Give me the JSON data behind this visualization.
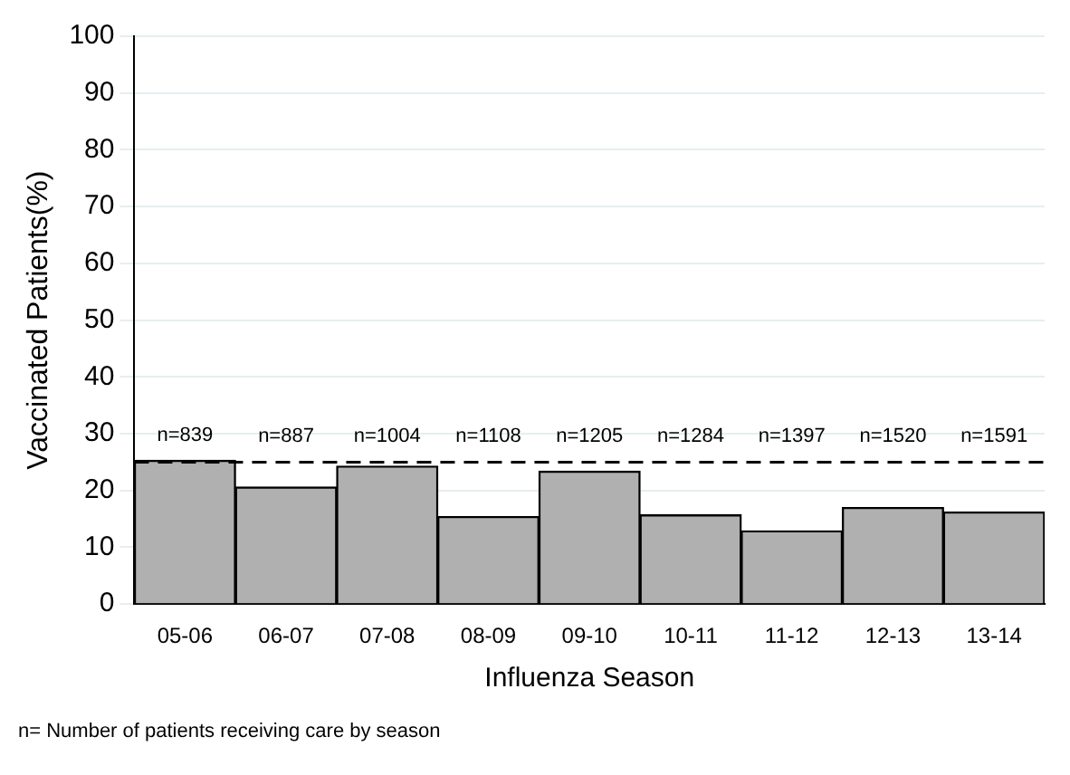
{
  "chart_data": {
    "type": "bar",
    "xlabel": "Influenza Season",
    "ylabel": "Vaccinated Patients(%)",
    "categories": [
      "05-06",
      "06-07",
      "07-08",
      "08-09",
      "09-10",
      "10-11",
      "11-12",
      "12-13",
      "13-14"
    ],
    "values": [
      25.3,
      20.6,
      24.3,
      15.4,
      23.4,
      15.7,
      12.9,
      17.0,
      16.2
    ],
    "color": "#b0b0b0",
    "ylim": [
      0,
      100
    ],
    "yticks": [
      0,
      10,
      20,
      30,
      40,
      50,
      60,
      70,
      80,
      90,
      100
    ],
    "grid": "y",
    "ref_lines": [
      {
        "axis": "y",
        "value": 25,
        "line_style": "dashed",
        "color": "#000000"
      }
    ],
    "annotations": [
      "n=839",
      "n=887",
      "n=1004",
      "n=1108",
      "n=1205",
      "n=1284",
      "n=1397",
      "n=1520",
      "n=1591",
      "n= Number of patients receiving care by season"
    ]
  }
}
